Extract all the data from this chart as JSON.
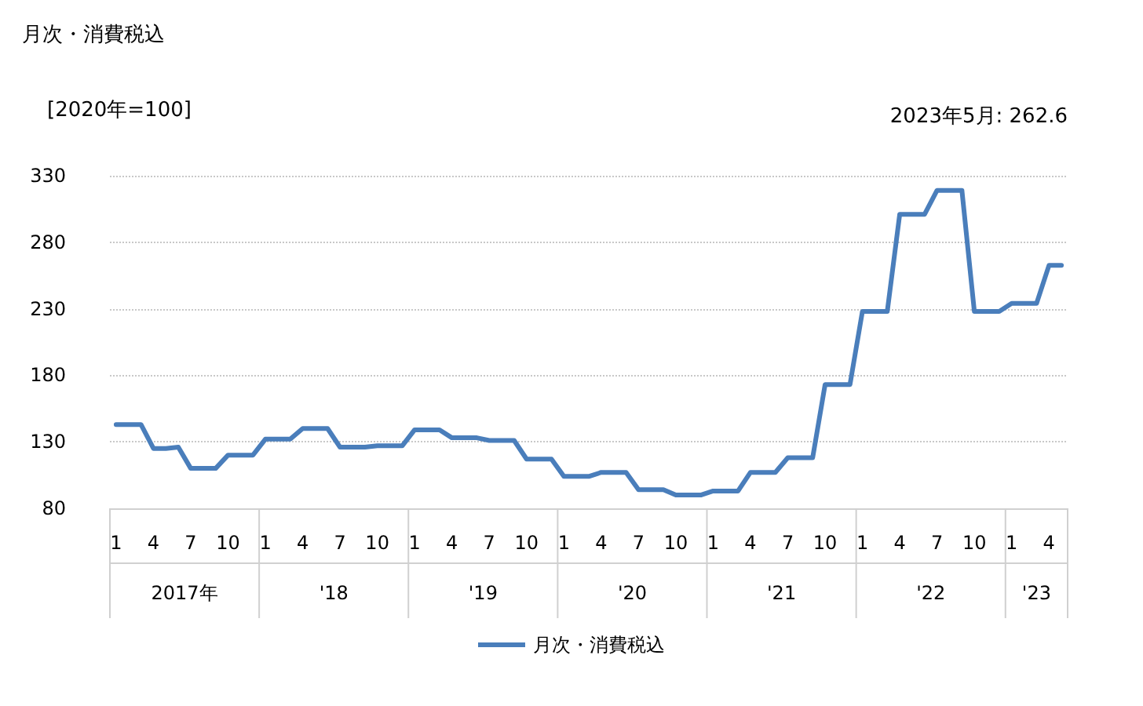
{
  "chart_data": {
    "type": "line",
    "title": "月次・消費税込",
    "ylabel": "[2020年=100]",
    "annotations": [
      "2023年5月: 262.6",
      "2017年",
      "'18",
      "'19",
      "'20",
      "'21",
      "'22",
      "'23"
    ],
    "categories": [
      "1",
      null,
      null,
      "4",
      null,
      null,
      "7",
      null,
      null,
      "10",
      null,
      null,
      "1",
      null,
      null,
      "4",
      null,
      null,
      "7",
      null,
      null,
      "10",
      null,
      null,
      "1",
      null,
      null,
      "4",
      null,
      null,
      "7",
      null,
      null,
      "10",
      null,
      null,
      "1",
      null,
      null,
      "4",
      null,
      null,
      "7",
      null,
      null,
      "10",
      null,
      null,
      "1",
      null,
      null,
      "4",
      null,
      null,
      "7",
      null,
      null,
      "10",
      null,
      null,
      "1",
      null,
      null,
      "4",
      null,
      null,
      "7",
      null,
      null,
      "10",
      null,
      null,
      "1",
      null,
      null,
      "4",
      null
    ],
    "series": [
      {
        "name": "月次・消費税込",
        "color": "#4a7ebb",
        "values": [
          143,
          143,
          143,
          125,
          125,
          126,
          110,
          110,
          110,
          120,
          120,
          120,
          132,
          132,
          132,
          140,
          140,
          140,
          126,
          126,
          126,
          127,
          127,
          127,
          139,
          139,
          139,
          133,
          133,
          133,
          131,
          131,
          131,
          117,
          117,
          117,
          104,
          104,
          104,
          107,
          107,
          107,
          94,
          94,
          94,
          90,
          90,
          90,
          93,
          93,
          93,
          107,
          107,
          107,
          118,
          118,
          118,
          173,
          173,
          173,
          228,
          228,
          228,
          301,
          301,
          301,
          319,
          319,
          319,
          228,
          228,
          228,
          234,
          234,
          234,
          262.6,
          262.6
        ]
      }
    ],
    "ylim": [
      80,
      330
    ],
    "yticks": [
      80,
      130,
      180,
      230,
      280,
      330
    ],
    "grid": "y",
    "legend": "bottom",
    "marker": "none",
    "line_style": "solid"
  }
}
